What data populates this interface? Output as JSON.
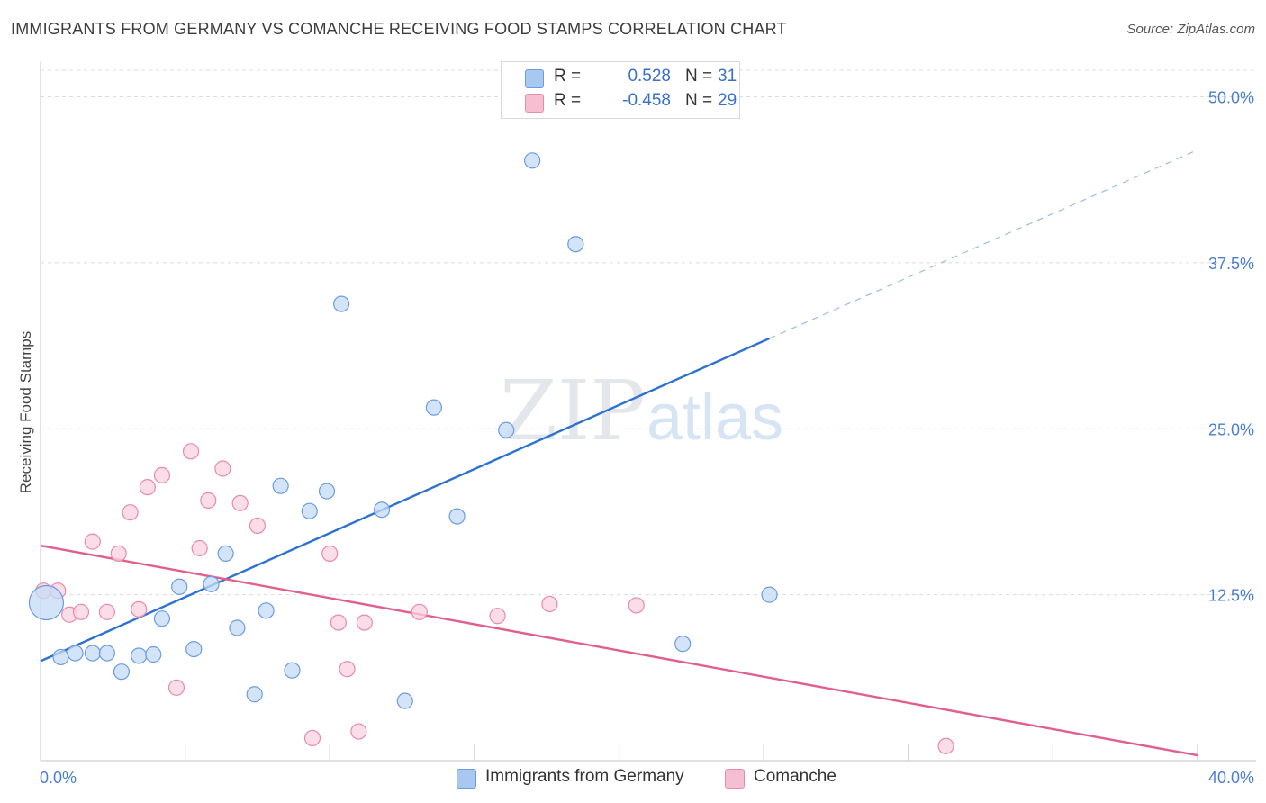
{
  "header": {
    "title": "IMMIGRANTS FROM GERMANY VS COMANCHE RECEIVING FOOD STAMPS CORRELATION CHART",
    "source": "Source: ZipAtlas.com"
  },
  "watermark": {
    "zip": "ZIP",
    "atlas": "atlas"
  },
  "legend": {
    "rows": [
      {
        "r_label": "R =",
        "r_value": "0.528",
        "n_label": "N =",
        "n_value": "31",
        "color": "#a9c8f0",
        "border": "#6a9de0"
      },
      {
        "r_label": "R =",
        "r_value": "-0.458",
        "n_label": "N =",
        "n_value": "29",
        "color": "#f6bfd1",
        "border": "#e98aa9"
      }
    ]
  },
  "chart_data": {
    "type": "scatter",
    "title": "IMMIGRANTS FROM GERMANY VS COMANCHE RECEIVING FOOD STAMPS CORRELATION CHART",
    "xlabel": "",
    "ylabel": "Receiving Food Stamps",
    "xlim": [
      0,
      40
    ],
    "ylim": [
      0,
      52
    ],
    "x_tick_labels": [
      "0.0%",
      "40.0%"
    ],
    "y_ticks": [
      12.5,
      25.0,
      37.5,
      50.0
    ],
    "y_tick_labels": [
      "12.5%",
      "25.0%",
      "37.5%",
      "50.0%"
    ],
    "grid": true,
    "legend_position": "top-center",
    "series": [
      {
        "name": "Immigrants from Germany",
        "color": "#6a9de0",
        "fill": "#c6dbf5",
        "line_color": "#2d72d2",
        "trend": {
          "x0": 0,
          "y0": 7.5,
          "x1": 25.2,
          "y1": 31.8,
          "dash_x1": 40,
          "dash_y1": 46.0
        },
        "points": [
          {
            "x": 0.2,
            "y": 11.9,
            "big": true
          },
          {
            "x": 0.7,
            "y": 7.8
          },
          {
            "x": 1.2,
            "y": 8.1
          },
          {
            "x": 1.8,
            "y": 8.1
          },
          {
            "x": 2.3,
            "y": 8.1
          },
          {
            "x": 2.8,
            "y": 6.7
          },
          {
            "x": 3.4,
            "y": 7.9
          },
          {
            "x": 3.9,
            "y": 8.0
          },
          {
            "x": 4.2,
            "y": 10.7
          },
          {
            "x": 4.8,
            "y": 13.1
          },
          {
            "x": 5.3,
            "y": 8.4
          },
          {
            "x": 5.9,
            "y": 13.3
          },
          {
            "x": 6.4,
            "y": 15.6
          },
          {
            "x": 6.8,
            "y": 10.0
          },
          {
            "x": 7.4,
            "y": 5.0
          },
          {
            "x": 7.8,
            "y": 11.3
          },
          {
            "x": 8.3,
            "y": 20.7
          },
          {
            "x": 8.7,
            "y": 6.8
          },
          {
            "x": 9.3,
            "y": 18.8
          },
          {
            "x": 9.9,
            "y": 20.3
          },
          {
            "x": 10.4,
            "y": 34.4
          },
          {
            "x": 11.8,
            "y": 18.9
          },
          {
            "x": 12.6,
            "y": 4.5
          },
          {
            "x": 13.6,
            "y": 26.6
          },
          {
            "x": 14.4,
            "y": 18.4
          },
          {
            "x": 16.1,
            "y": 24.9
          },
          {
            "x": 16.9,
            "y": 49.6
          },
          {
            "x": 17.0,
            "y": 45.2
          },
          {
            "x": 18.5,
            "y": 38.9
          },
          {
            "x": 22.2,
            "y": 8.8
          },
          {
            "x": 25.2,
            "y": 12.5
          }
        ]
      },
      {
        "name": "Comanche",
        "color": "#e98aa9",
        "fill": "#f9d2df",
        "line_color": "#e0608a",
        "trend": {
          "x0": 0,
          "y0": 16.2,
          "x1": 40,
          "y1": 0.4
        },
        "points": [
          {
            "x": 0.1,
            "y": 12.8
          },
          {
            "x": 0.6,
            "y": 12.8
          },
          {
            "x": 1.0,
            "y": 11.0
          },
          {
            "x": 1.4,
            "y": 11.2
          },
          {
            "x": 1.8,
            "y": 16.5
          },
          {
            "x": 2.3,
            "y": 11.2
          },
          {
            "x": 2.7,
            "y": 15.6
          },
          {
            "x": 3.1,
            "y": 18.7
          },
          {
            "x": 3.4,
            "y": 11.4
          },
          {
            "x": 3.7,
            "y": 20.6
          },
          {
            "x": 4.2,
            "y": 21.5
          },
          {
            "x": 4.7,
            "y": 5.5
          },
          {
            "x": 5.2,
            "y": 23.3
          },
          {
            "x": 5.5,
            "y": 16.0
          },
          {
            "x": 5.8,
            "y": 19.6
          },
          {
            "x": 6.3,
            "y": 22.0
          },
          {
            "x": 6.9,
            "y": 19.4
          },
          {
            "x": 7.5,
            "y": 17.7
          },
          {
            "x": 9.4,
            "y": 1.7
          },
          {
            "x": 10.0,
            "y": 15.6
          },
          {
            "x": 10.3,
            "y": 10.4
          },
          {
            "x": 10.6,
            "y": 6.9
          },
          {
            "x": 11.0,
            "y": 2.2
          },
          {
            "x": 11.2,
            "y": 10.4
          },
          {
            "x": 13.1,
            "y": 11.2
          },
          {
            "x": 15.8,
            "y": 10.9
          },
          {
            "x": 17.6,
            "y": 11.8
          },
          {
            "x": 20.6,
            "y": 11.7
          },
          {
            "x": 31.3,
            "y": 1.1
          }
        ]
      }
    ]
  }
}
